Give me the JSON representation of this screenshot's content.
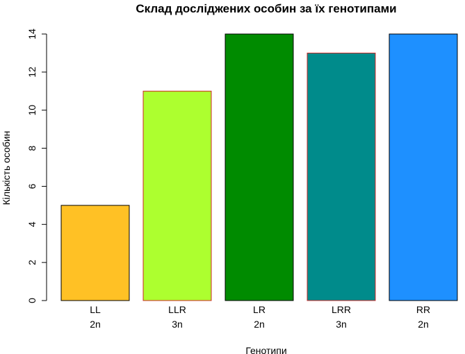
{
  "chart_data": {
    "type": "bar",
    "title": "Склад досліджених особин за їх генотипами",
    "xlabel": "Генотипи",
    "ylabel": "Кількість особин",
    "ylim": [
      0,
      14
    ],
    "yticks": [
      0,
      2,
      4,
      6,
      8,
      10,
      12,
      14
    ],
    "categories": [
      "LL",
      "LLR",
      "LR",
      "LRR",
      "RR"
    ],
    "sublabels": [
      "2n",
      "3n",
      "2n",
      "3n",
      "2n"
    ],
    "values": [
      5,
      11,
      14,
      13,
      14
    ],
    "colors": [
      "#FFC125",
      "#ADFF2F",
      "#008B00",
      "#008B8B",
      "#1E90FF"
    ],
    "border_colors": [
      "#000000",
      "#CD2626",
      "#000000",
      "#CD2626",
      "#000000"
    ],
    "grid": false,
    "legend": "none"
  }
}
